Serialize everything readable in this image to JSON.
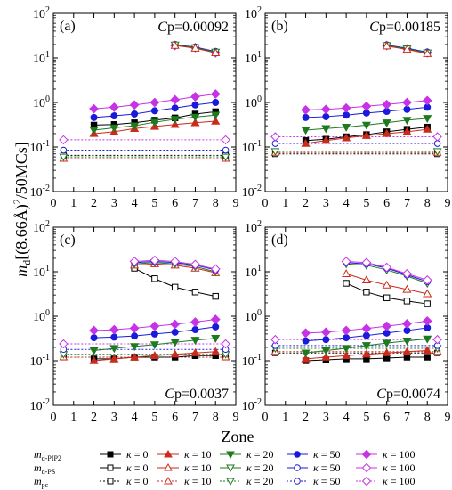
{
  "figure": {
    "xlabel": "Zone",
    "ylabel_prefix": "m",
    "ylabel_sub": "d",
    "ylabel_rest": "[(8.66Å)",
    "ylabel_sup": "2",
    "ylabel_tail": "/50MCs]"
  },
  "chart_data": [
    {
      "type": "line",
      "panel": "(a)",
      "cp_label": "C",
      "cp_sub": "p",
      "cp_value": "=0.00092",
      "cp_pos": "top-right",
      "x": [
        2,
        3,
        4,
        5,
        6,
        7,
        8
      ],
      "xlim": [
        0,
        9
      ],
      "ylim": [
        0.01,
        100
      ],
      "yscale": "log",
      "xticks": [
        "0",
        "1",
        "2",
        "3",
        "4",
        "5",
        "6",
        "7",
        "8",
        "9"
      ],
      "yticks": [
        "10^-2",
        "10^-1",
        "10^0",
        "10^1",
        "10^2"
      ],
      "series": [
        {
          "group": "PIP2",
          "kappa": "0",
          "values": [
            0.31,
            0.32,
            0.35,
            0.4,
            0.45,
            0.55,
            0.62
          ]
        },
        {
          "group": "PIP2",
          "kappa": "10",
          "values": [
            0.2,
            0.22,
            0.26,
            0.29,
            0.32,
            0.35,
            0.38
          ]
        },
        {
          "group": "PIP2",
          "kappa": "20",
          "values": [
            0.24,
            0.27,
            0.3,
            0.36,
            0.42,
            0.47,
            0.52
          ]
        },
        {
          "group": "PIP2",
          "kappa": "50",
          "values": [
            0.46,
            0.5,
            0.55,
            0.65,
            0.75,
            0.88,
            1.0
          ]
        },
        {
          "group": "PIP2",
          "kappa": "100",
          "values": [
            0.72,
            0.78,
            0.88,
            1.0,
            1.15,
            1.35,
            1.55
          ]
        },
        {
          "group": "PS",
          "kappa": "100",
          "x": [
            6,
            7,
            8
          ],
          "values": [
            19,
            17,
            13
          ]
        },
        {
          "group": "PS",
          "kappa": "50",
          "x": [
            6,
            7,
            8
          ],
          "values": [
            20,
            17.5,
            14
          ]
        },
        {
          "group": "PS",
          "kappa": "20",
          "x": [
            6,
            7,
            8
          ],
          "values": [
            19.5,
            17,
            13.5
          ]
        },
        {
          "group": "PS",
          "kappa": "10",
          "x": [
            6,
            7,
            8
          ],
          "values": [
            19,
            16.5,
            13
          ]
        }
      ],
      "pc": [
        {
          "kappa": "0",
          "value": 0.065
        },
        {
          "kappa": "10",
          "value": 0.055
        },
        {
          "kappa": "20",
          "value": 0.06
        },
        {
          "kappa": "50",
          "value": 0.085
        },
        {
          "kappa": "100",
          "value": 0.145
        }
      ]
    },
    {
      "type": "line",
      "panel": "(b)",
      "cp_label": "C",
      "cp_sub": "p",
      "cp_value": "=0.00185",
      "cp_pos": "top-right",
      "x": [
        2,
        3,
        4,
        5,
        6,
        7,
        8
      ],
      "xlim": [
        0,
        9
      ],
      "ylim": [
        0.01,
        100
      ],
      "yscale": "log",
      "xticks": [
        "0",
        "1",
        "2",
        "3",
        "4",
        "5",
        "6",
        "7",
        "8",
        "9"
      ],
      "yticks": [
        "10^-2",
        "10^-1",
        "10^0",
        "10^1",
        "10^2"
      ],
      "series": [
        {
          "group": "PIP2",
          "kappa": "0",
          "values": [
            0.14,
            0.15,
            0.17,
            0.19,
            0.22,
            0.25,
            0.28
          ]
        },
        {
          "group": "PIP2",
          "kappa": "10",
          "values": [
            0.12,
            0.14,
            0.16,
            0.18,
            0.2,
            0.22,
            0.25
          ]
        },
        {
          "group": "PIP2",
          "kappa": "20",
          "values": [
            0.24,
            0.26,
            0.28,
            0.31,
            0.35,
            0.4,
            0.44
          ]
        },
        {
          "group": "PIP2",
          "kappa": "50",
          "values": [
            0.46,
            0.48,
            0.52,
            0.58,
            0.63,
            0.7,
            0.78
          ]
        },
        {
          "group": "PIP2",
          "kappa": "100",
          "values": [
            0.68,
            0.7,
            0.75,
            0.82,
            0.9,
            1.0,
            1.1
          ]
        },
        {
          "group": "PS",
          "kappa": "100",
          "x": [
            6,
            7,
            8
          ],
          "values": [
            19,
            16,
            13
          ]
        },
        {
          "group": "PS",
          "kappa": "50",
          "x": [
            6,
            7,
            8
          ],
          "values": [
            19.5,
            16.5,
            13.5
          ]
        },
        {
          "group": "PS",
          "kappa": "20",
          "x": [
            6,
            7,
            8
          ],
          "values": [
            19,
            16,
            13
          ]
        },
        {
          "group": "PS",
          "kappa": "10",
          "x": [
            6,
            7,
            8
          ],
          "values": [
            18.5,
            15.5,
            12.5
          ]
        }
      ],
      "pc": [
        {
          "kappa": "0",
          "value": 0.07
        },
        {
          "kappa": "10",
          "value": 0.075
        },
        {
          "kappa": "20",
          "value": 0.08
        },
        {
          "kappa": "50",
          "value": 0.12
        },
        {
          "kappa": "100",
          "value": 0.17
        }
      ]
    },
    {
      "type": "line",
      "panel": "(c)",
      "cp_label": "C",
      "cp_sub": "p",
      "cp_value": "=0.0037",
      "cp_pos": "bottom-right",
      "x": [
        2,
        3,
        4,
        5,
        6,
        7,
        8
      ],
      "xlim": [
        0,
        9
      ],
      "ylim": [
        0.01,
        100
      ],
      "yscale": "log",
      "xticks": [
        "0",
        "1",
        "2",
        "3",
        "4",
        "5",
        "6",
        "7",
        "8",
        "9"
      ],
      "yticks": [
        "10^-2",
        "10^-1",
        "10^0",
        "10^1",
        "10^2"
      ],
      "series": [
        {
          "group": "PIP2",
          "kappa": "0",
          "values": [
            0.11,
            0.11,
            0.12,
            0.12,
            0.12,
            0.13,
            0.13
          ]
        },
        {
          "group": "PIP2",
          "kappa": "10",
          "values": [
            0.1,
            0.11,
            0.12,
            0.13,
            0.14,
            0.15,
            0.16
          ]
        },
        {
          "group": "PIP2",
          "kappa": "20",
          "values": [
            0.17,
            0.19,
            0.21,
            0.23,
            0.26,
            0.29,
            0.32
          ]
        },
        {
          "group": "PIP2",
          "kappa": "50",
          "values": [
            0.33,
            0.34,
            0.36,
            0.4,
            0.44,
            0.5,
            0.58
          ]
        },
        {
          "group": "PIP2",
          "kappa": "100",
          "values": [
            0.48,
            0.5,
            0.54,
            0.6,
            0.66,
            0.74,
            0.85
          ]
        },
        {
          "group": "PS",
          "kappa": "0",
          "x": [
            4,
            5,
            6,
            7,
            8
          ],
          "values": [
            12,
            7,
            4.5,
            3.5,
            2.8
          ]
        },
        {
          "group": "PS",
          "kappa": "10",
          "x": [
            4,
            5,
            6,
            7,
            8
          ],
          "values": [
            14,
            15,
            14,
            12,
            9.5
          ]
        },
        {
          "group": "PS",
          "kappa": "20",
          "x": [
            4,
            5,
            6,
            7,
            8
          ],
          "values": [
            15,
            16,
            15,
            13,
            10
          ]
        },
        {
          "group": "PS",
          "kappa": "50",
          "x": [
            4,
            5,
            6,
            7,
            8
          ],
          "values": [
            16,
            17,
            16,
            14,
            11
          ]
        },
        {
          "group": "PS",
          "kappa": "100",
          "x": [
            4,
            5,
            6,
            7,
            8
          ],
          "values": [
            17,
            18,
            17,
            14.5,
            11.5
          ]
        }
      ],
      "pc": [
        {
          "kappa": "0",
          "value": 0.12
        },
        {
          "kappa": "10",
          "value": 0.12
        },
        {
          "kappa": "20",
          "value": 0.14
        },
        {
          "kappa": "50",
          "value": 0.18
        },
        {
          "kappa": "100",
          "value": 0.24
        }
      ]
    },
    {
      "type": "line",
      "panel": "(d)",
      "cp_label": "C",
      "cp_sub": "p",
      "cp_value": "=0.0074",
      "cp_pos": "bottom-right",
      "x": [
        2,
        3,
        4,
        5,
        6,
        7,
        8
      ],
      "xlim": [
        0,
        9
      ],
      "ylim": [
        0.01,
        100
      ],
      "yscale": "log",
      "xticks": [
        "0",
        "1",
        "2",
        "3",
        "4",
        "5",
        "6",
        "7",
        "8",
        "9"
      ],
      "yticks": [
        "10^-2",
        "10^-1",
        "10^0",
        "10^1",
        "10^2"
      ],
      "series": [
        {
          "group": "PIP2",
          "kappa": "0",
          "values": [
            0.1,
            0.105,
            0.11,
            0.11,
            0.115,
            0.12,
            0.12
          ]
        },
        {
          "group": "PIP2",
          "kappa": "10",
          "values": [
            0.11,
            0.12,
            0.13,
            0.14,
            0.15,
            0.16,
            0.17
          ]
        },
        {
          "group": "PIP2",
          "kappa": "20",
          "values": [
            0.15,
            0.17,
            0.19,
            0.22,
            0.25,
            0.28,
            0.31
          ]
        },
        {
          "group": "PIP2",
          "kappa": "50",
          "values": [
            0.28,
            0.3,
            0.33,
            0.37,
            0.42,
            0.48,
            0.55
          ]
        },
        {
          "group": "PIP2",
          "kappa": "100",
          "values": [
            0.42,
            0.44,
            0.48,
            0.53,
            0.6,
            0.68,
            0.78
          ]
        },
        {
          "group": "PS",
          "kappa": "0",
          "x": [
            4,
            5,
            6,
            7,
            8
          ],
          "values": [
            5.5,
            3.5,
            2.6,
            2.2,
            1.9
          ]
        },
        {
          "group": "PS",
          "kappa": "10",
          "x": [
            4,
            5,
            6,
            7,
            8
          ],
          "values": [
            9,
            6.5,
            5,
            4,
            3.2
          ]
        },
        {
          "group": "PS",
          "kappa": "20",
          "x": [
            4,
            5,
            6,
            7,
            8
          ],
          "values": [
            15,
            14,
            11,
            8,
            5.5
          ]
        },
        {
          "group": "PS",
          "kappa": "50",
          "x": [
            4,
            5,
            6,
            7,
            8
          ],
          "values": [
            16,
            15,
            12,
            8.5,
            6
          ]
        },
        {
          "group": "PS",
          "kappa": "100",
          "x": [
            4,
            5,
            6,
            7,
            8
          ],
          "values": [
            17,
            16,
            12.5,
            9,
            6.5
          ]
        }
      ],
      "pc": [
        {
          "kappa": "0",
          "value": 0.15
        },
        {
          "kappa": "10",
          "value": 0.16
        },
        {
          "kappa": "20",
          "value": 0.19
        },
        {
          "kappa": "50",
          "value": 0.22
        },
        {
          "kappa": "100",
          "value": 0.3
        }
      ]
    }
  ],
  "legend": {
    "rows": [
      {
        "label": "m",
        "sub": "d-PIP2"
      },
      {
        "label": "m",
        "sub": "d-PS"
      },
      {
        "label": "m",
        "sub": "pc"
      }
    ],
    "kappa_symbol": "κ",
    "kappas": [
      "0",
      "10",
      "20",
      "50",
      "100"
    ]
  },
  "styles": {
    "0": {
      "color": "#000000",
      "marker": "square"
    },
    "10": {
      "color": "#cc2a1a",
      "marker": "triangle-up"
    },
    "20": {
      "color": "#1f7a1f",
      "marker": "triangle-down"
    },
    "50": {
      "color": "#1a1adc",
      "marker": "circle"
    },
    "100": {
      "color": "#c832e6",
      "marker": "diamond"
    }
  }
}
